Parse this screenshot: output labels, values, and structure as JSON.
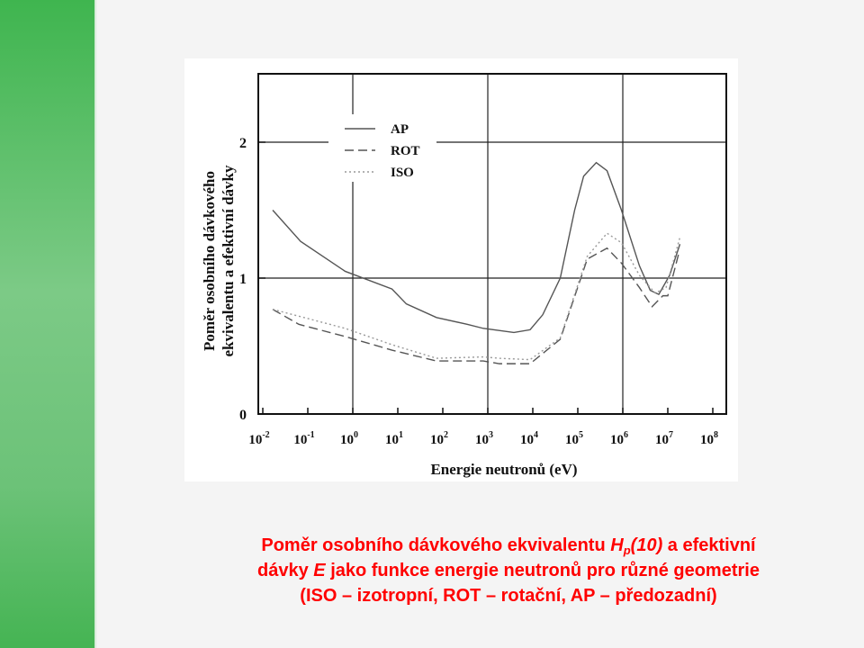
{
  "chart_data": {
    "type": "line",
    "xscale": "log",
    "xlabel": "Energie neutronů (eV)",
    "ylabel": [
      "Poměr osobního dávkového",
      "ekvivalentu a efektivní dávky"
    ],
    "xlim_log10": [
      -2.1,
      8.3
    ],
    "ylim": [
      0,
      2.5
    ],
    "x_ticks": [
      {
        "base": "10",
        "exp": "-2",
        "log": -2
      },
      {
        "base": "10",
        "exp": "-1",
        "log": -1
      },
      {
        "base": "10",
        "exp": "0",
        "log": 0
      },
      {
        "base": "10",
        "exp": "1",
        "log": 1
      },
      {
        "base": "10",
        "exp": "2",
        "log": 2
      },
      {
        "base": "10",
        "exp": "3",
        "log": 3
      },
      {
        "base": "10",
        "exp": "4",
        "log": 4
      },
      {
        "base": "10",
        "exp": "5",
        "log": 5
      },
      {
        "base": "10",
        "exp": "6",
        "log": 6
      },
      {
        "base": "10",
        "exp": "7",
        "log": 7
      },
      {
        "base": "10",
        "exp": "8",
        "log": 8
      }
    ],
    "y_ticks": [
      {
        "label": "0",
        "value": 0
      },
      {
        "label": "1",
        "value": 1
      },
      {
        "label": "2",
        "value": 2
      }
    ],
    "grid_x_log10": [
      0,
      3,
      6
    ],
    "grid_y": [
      1,
      2
    ],
    "legend_position": "top-left",
    "series": [
      {
        "name": "AP",
        "style": "solid",
        "color": "#555555",
        "x_log10": [
          -1.78,
          -1.16,
          -0.17,
          0.87,
          1.19,
          1.86,
          2.54,
          2.9,
          3.58,
          3.94,
          4.22,
          4.61,
          4.93,
          5.13,
          5.41,
          5.65,
          5.97,
          6.37,
          6.61,
          6.8,
          7.04,
          7.27
        ],
        "y": [
          1.5,
          1.27,
          1.05,
          0.92,
          0.81,
          0.71,
          0.66,
          0.63,
          0.6,
          0.62,
          0.73,
          1.0,
          1.5,
          1.75,
          1.85,
          1.79,
          1.5,
          1.09,
          0.91,
          0.88,
          1.02,
          1.25
        ]
      },
      {
        "name": "ROT",
        "style": "dashed",
        "color": "#555555",
        "x_log10": [
          -1.78,
          -1.2,
          -0.17,
          0.87,
          1.86,
          2.9,
          3.26,
          3.94,
          4.61,
          5.21,
          5.65,
          5.97,
          6.37,
          6.65,
          6.89,
          7.0,
          7.25
        ],
        "y": [
          0.77,
          0.66,
          0.57,
          0.47,
          0.39,
          0.39,
          0.37,
          0.37,
          0.55,
          1.14,
          1.22,
          1.11,
          0.93,
          0.79,
          0.87,
          0.87,
          1.19
        ]
      },
      {
        "name": "ISO",
        "style": "dotted",
        "color": "#999999",
        "x_log10": [
          -1.78,
          -1.2,
          -0.17,
          0.87,
          1.86,
          2.9,
          3.26,
          3.94,
          4.61,
          5.21,
          5.65,
          5.97,
          6.37,
          6.72,
          6.96,
          7.27
        ],
        "y": [
          0.77,
          0.72,
          0.63,
          0.51,
          0.41,
          0.42,
          0.41,
          0.4,
          0.56,
          1.16,
          1.33,
          1.26,
          1.02,
          0.89,
          0.93,
          1.3
        ]
      }
    ]
  },
  "caption": {
    "l1_a": "Poměr osobního dávkového ekvivalentu ",
    "l1_H": "H",
    "l1_sub": "p",
    "l1_arg": "(10)",
    "l1_b": " a efektivní",
    "l2_a": "dávky ",
    "l2_E": "E",
    "l2_b": " jako funkce energie neutronů pro různé geometrie",
    "l3": "(ISO – izotropní, ROT – rotační, AP – předozadní)"
  },
  "colors": {
    "accent_green": "#3fb54f",
    "caption_red": "#ff0000"
  }
}
